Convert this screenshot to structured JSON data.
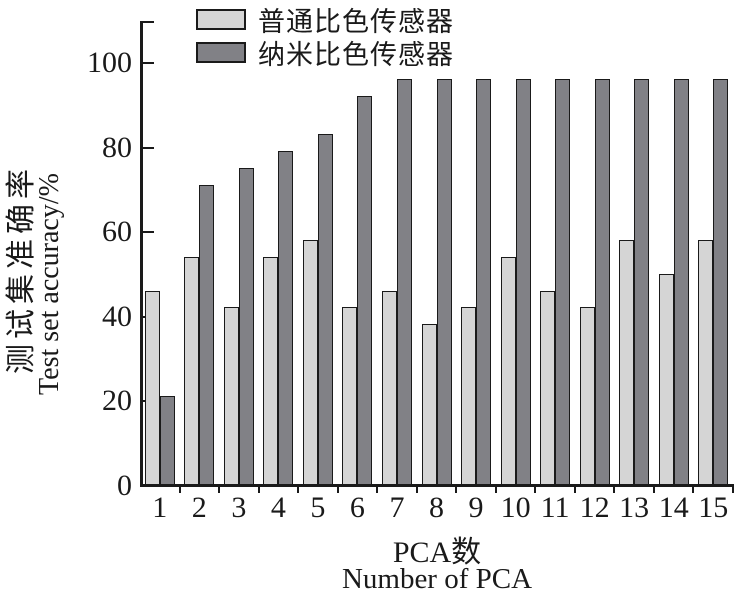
{
  "chart_data": {
    "type": "bar",
    "title": "",
    "categories": [
      "1",
      "2",
      "3",
      "4",
      "5",
      "6",
      "7",
      "8",
      "9",
      "10",
      "11",
      "12",
      "13",
      "14",
      "15"
    ],
    "series": [
      {
        "name": "普通比色传感器",
        "color": "#d5d5d5",
        "values": [
          46,
          54,
          42,
          54,
          58,
          42,
          46,
          38,
          42,
          54,
          46,
          42,
          58,
          50,
          58
        ]
      },
      {
        "name": "纳米比色传感器",
        "color": "#818186",
        "values": [
          21,
          71,
          75,
          79,
          83,
          92,
          96,
          96,
          96,
          96,
          96,
          96,
          96,
          96,
          96
        ]
      }
    ],
    "xlabel_zh": "PCA数",
    "xlabel_en": "Number of PCA",
    "ylabel_zh": "测试集准确率",
    "ylabel_en": "Test set accuracy/%",
    "ylim": [
      0,
      110
    ],
    "yticks": [
      0,
      20,
      40,
      60,
      80,
      100
    ],
    "grid": false,
    "legend_position": "top-left-inside",
    "axis_color": "#1a1a1a"
  }
}
